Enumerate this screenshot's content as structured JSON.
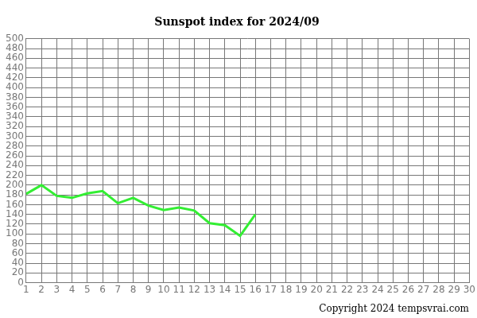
{
  "chart_data": {
    "type": "line",
    "title": "Sunspot index for 2024/09",
    "annotations": [
      "Copyright 2024 tempsvrai.com"
    ],
    "x": [
      1,
      2,
      3,
      4,
      5,
      6,
      7,
      8,
      9,
      10,
      11,
      12,
      13,
      14,
      15,
      16
    ],
    "values": [
      182,
      200,
      178,
      174,
      183,
      188,
      163,
      174,
      158,
      149,
      154,
      148,
      122,
      118,
      96,
      140
    ],
    "color": "#33ee33",
    "xlim": [
      1,
      30
    ],
    "xticks": [
      1,
      2,
      3,
      4,
      5,
      6,
      7,
      8,
      9,
      10,
      11,
      12,
      13,
      14,
      15,
      16,
      17,
      18,
      19,
      20,
      21,
      22,
      23,
      24,
      25,
      26,
      27,
      28,
      29,
      30
    ],
    "ylim": [
      0,
      500
    ],
    "yticks": [
      0,
      20,
      40,
      60,
      80,
      100,
      120,
      140,
      160,
      180,
      200,
      220,
      240,
      260,
      280,
      300,
      320,
      340,
      360,
      380,
      400,
      420,
      440,
      460,
      480,
      500
    ],
    "grid": true
  }
}
